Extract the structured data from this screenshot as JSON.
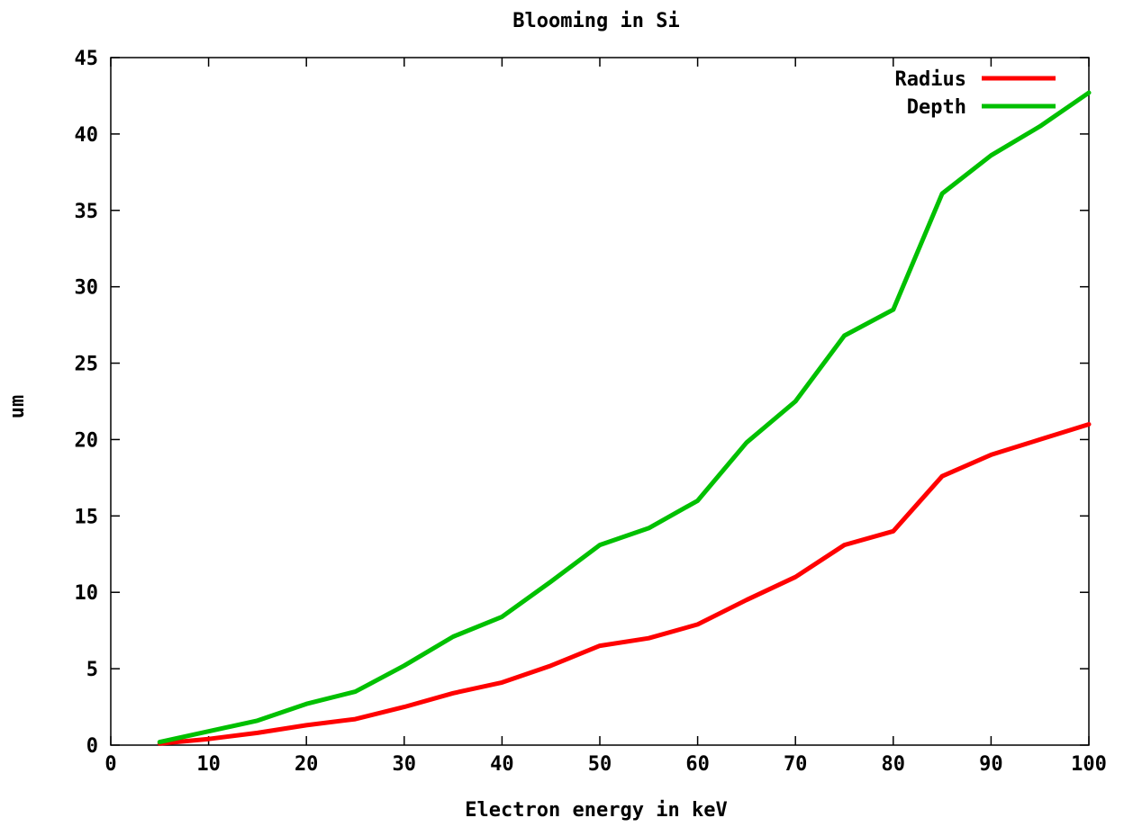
{
  "chart_data": {
    "type": "line",
    "title": "Blooming in Si",
    "xlabel": "Electron energy in keV",
    "ylabel": "um",
    "xlim": [
      0,
      100
    ],
    "ylim": [
      0,
      45
    ],
    "x_ticks": [
      0,
      10,
      20,
      30,
      40,
      50,
      60,
      70,
      80,
      90,
      100
    ],
    "y_ticks": [
      0,
      5,
      10,
      15,
      20,
      25,
      30,
      35,
      40,
      45
    ],
    "grid": false,
    "legend_position": "top-right",
    "series": [
      {
        "name": "Radius",
        "color": "#ff0000",
        "x": [
          5,
          10,
          15,
          20,
          25,
          30,
          35,
          40,
          45,
          50,
          55,
          60,
          65,
          70,
          75,
          80,
          85,
          90,
          95,
          100
        ],
        "values": [
          0.1,
          0.4,
          0.8,
          1.3,
          1.7,
          2.5,
          3.4,
          4.1,
          5.2,
          6.5,
          7.0,
          7.9,
          9.5,
          11.0,
          13.1,
          14.0,
          17.6,
          19.0,
          20.0,
          21.0
        ]
      },
      {
        "name": "Depth",
        "color": "#00c000",
        "x": [
          5,
          10,
          15,
          20,
          25,
          30,
          35,
          40,
          45,
          50,
          55,
          60,
          65,
          70,
          75,
          80,
          85,
          90,
          95,
          100
        ],
        "values": [
          0.2,
          0.9,
          1.6,
          2.7,
          3.5,
          5.2,
          7.1,
          8.4,
          10.7,
          13.1,
          14.2,
          16.0,
          19.8,
          22.5,
          26.8,
          28.5,
          36.1,
          38.6,
          40.5,
          42.7
        ]
      }
    ]
  }
}
